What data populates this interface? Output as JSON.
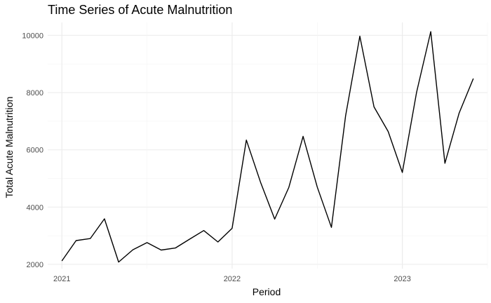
{
  "chart_data": {
    "type": "line",
    "title": "Time Series of Acute Malnutrition",
    "xlabel": "Period",
    "ylabel": "Total Acute Malnutrition",
    "x_tick_labels": [
      "2021",
      "2022",
      "2023"
    ],
    "y_tick_labels": [
      "2000",
      "4000",
      "6000",
      "8000",
      "10000"
    ],
    "ylim": [
      1850,
      10450
    ],
    "xlim": [
      "2020-12-01",
      "2023-07-01"
    ],
    "grid": true,
    "legend": "none",
    "line_color": "#000000",
    "series": [
      {
        "x": [
          "2021-01",
          "2021-02",
          "2021-03",
          "2021-04",
          "2021-05",
          "2021-06",
          "2021-07",
          "2021-08",
          "2021-09",
          "2021-10",
          "2021-11",
          "2021-12",
          "2022-01",
          "2022-02",
          "2022-03",
          "2022-04",
          "2022-05",
          "2022-06",
          "2022-07",
          "2022-08",
          "2022-09",
          "2022-10",
          "2022-11",
          "2022-12",
          "2023-01",
          "2023-02",
          "2023-03",
          "2023-04",
          "2023-05",
          "2023-06"
        ],
        "values": [
          2120,
          2830,
          2900,
          3590,
          2080,
          2510,
          2760,
          2500,
          2570,
          2880,
          3180,
          2780,
          3260,
          6340,
          4870,
          3580,
          4690,
          6470,
          4700,
          3290,
          7190,
          9970,
          7500,
          6640,
          5210,
          8010,
          10130,
          5530,
          7280,
          8490
        ]
      }
    ]
  }
}
